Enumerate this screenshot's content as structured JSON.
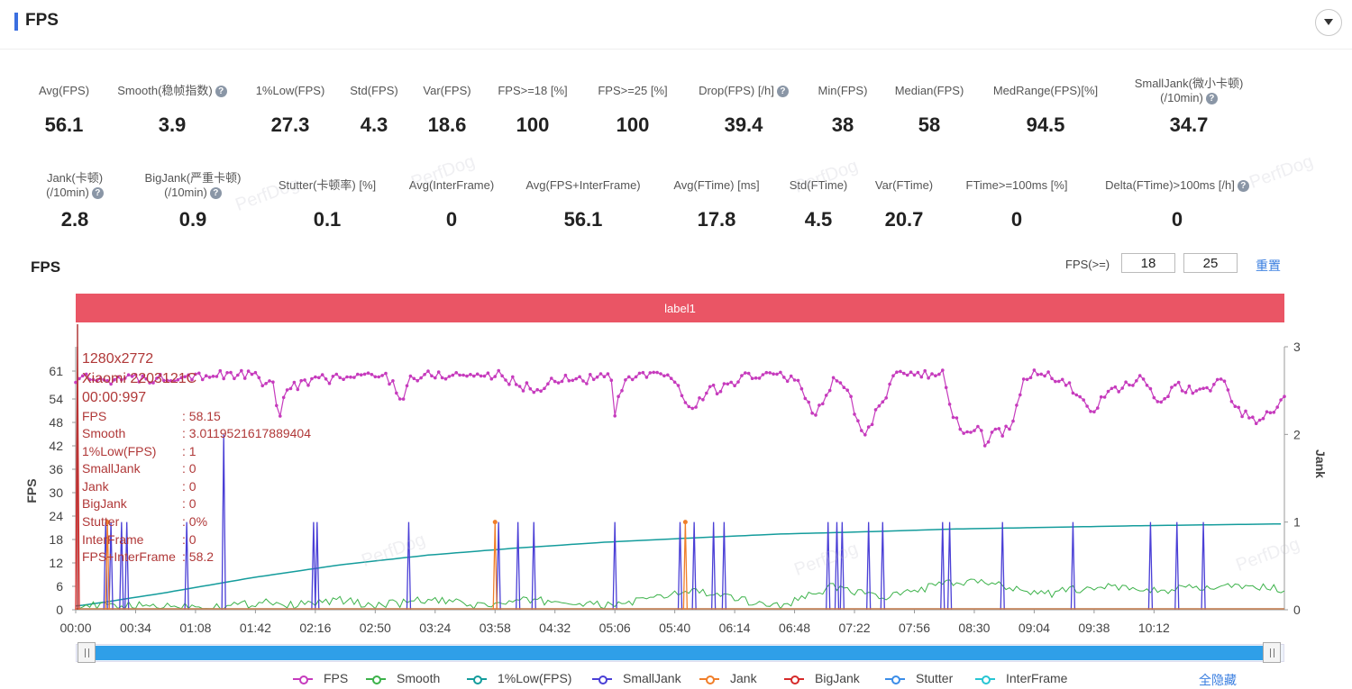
{
  "header": {
    "title": "FPS"
  },
  "stats_row1": [
    {
      "label": "Avg(FPS)",
      "value": "56.1",
      "help": false
    },
    {
      "label": "Smooth(稳帧指数)",
      "value": "3.9",
      "help": true
    },
    {
      "label": "1%Low(FPS)",
      "value": "27.3",
      "help": false
    },
    {
      "label": "Std(FPS)",
      "value": "4.3",
      "help": false
    },
    {
      "label": "Var(FPS)",
      "value": "18.6",
      "help": false
    },
    {
      "label": "FPS>=18 [%]",
      "value": "100",
      "help": false
    },
    {
      "label": "FPS>=25 [%]",
      "value": "100",
      "help": false
    },
    {
      "label": "Drop(FPS) [/h]",
      "value": "39.4",
      "help": true
    },
    {
      "label": "Min(FPS)",
      "value": "38",
      "help": false
    },
    {
      "label": "Median(FPS)",
      "value": "58",
      "help": false
    },
    {
      "label": "MedRange(FPS)[%]",
      "value": "94.5",
      "help": false
    },
    {
      "label": "SmallJank(微小卡顿)",
      "label2": "(/10min)",
      "value": "34.7",
      "help": true
    }
  ],
  "stats_row2": [
    {
      "label": "Jank(卡顿)",
      "label2": "(/10min)",
      "value": "2.8",
      "help": true
    },
    {
      "label": "BigJank(严重卡顿)",
      "label2": "(/10min)",
      "value": "0.9",
      "help": true
    },
    {
      "label": "Stutter(卡顿率) [%]",
      "value": "0.1",
      "help": false
    },
    {
      "label": "Avg(InterFrame)",
      "value": "0",
      "help": false
    },
    {
      "label": "Avg(FPS+InterFrame)",
      "value": "56.1",
      "help": false
    },
    {
      "label": "Avg(FTime) [ms]",
      "value": "17.8",
      "help": false
    },
    {
      "label": "Std(FTime)",
      "value": "4.5",
      "help": false
    },
    {
      "label": "Var(FTime)",
      "value": "20.7",
      "help": false
    },
    {
      "label": "FTime>=100ms [%]",
      "value": "0",
      "help": false
    },
    {
      "label": "Delta(FTime)>100ms [/h]",
      "value": "0",
      "help": true
    }
  ],
  "chart_section": {
    "title": "FPS",
    "threshold_label": "FPS(>=)",
    "threshold1": "18",
    "threshold2": "25",
    "reset_label": "重置",
    "label_bar": "label1",
    "watermark": "PerfDog",
    "hide_all_label": "全隐藏"
  },
  "tooltip": {
    "resolution": "1280x2772",
    "device": "Xiaomi 2203121C",
    "time": "00:00:997",
    "rows": [
      {
        "key": "FPS",
        "value": ": 58.15"
      },
      {
        "key": "Smooth",
        "value": ": 3.0119521617889404"
      },
      {
        "key": "1%Low(FPS)",
        "value": ": 1"
      },
      {
        "key": "SmallJank",
        "value": ": 0"
      },
      {
        "key": "Jank",
        "value": ": 0"
      },
      {
        "key": "BigJank",
        "value": ": 0"
      },
      {
        "key": "Stutter",
        "value": ": 0%"
      },
      {
        "key": "InterFrame",
        "value": ": 0"
      },
      {
        "key": "FPS+InterFrame",
        "value": ": 58.2"
      }
    ]
  },
  "chart_data": {
    "type": "line",
    "ylabel": "FPS",
    "y2label": "Jank",
    "ylim": [
      0,
      66
    ],
    "y2lim": [
      0,
      3
    ],
    "yticks": [
      0,
      6,
      12,
      18,
      24,
      30,
      36,
      42,
      48,
      54,
      61
    ],
    "y2ticks": [
      0,
      1,
      2,
      3
    ],
    "xlim": [
      0,
      686
    ],
    "xticks": [
      "00:00",
      "00:34",
      "01:08",
      "01:42",
      "02:16",
      "02:50",
      "03:24",
      "03:58",
      "04:32",
      "05:06",
      "05:40",
      "06:14",
      "06:48",
      "07:22",
      "07:56",
      "08:30",
      "09:04",
      "09:38",
      "10:12"
    ],
    "xtick_seconds": [
      0,
      34,
      68,
      102,
      136,
      170,
      204,
      238,
      272,
      306,
      340,
      374,
      408,
      442,
      476,
      510,
      544,
      578,
      612
    ],
    "fps_keypoints": [
      [
        0,
        59
      ],
      [
        40,
        59
      ],
      [
        45,
        59
      ],
      [
        60,
        60
      ],
      [
        100,
        60
      ],
      [
        108,
        58
      ],
      [
        112,
        57
      ],
      [
        115,
        49
      ],
      [
        120,
        57
      ],
      [
        140,
        59
      ],
      [
        175,
        60
      ],
      [
        180,
        58
      ],
      [
        185,
        54
      ],
      [
        190,
        59
      ],
      [
        200,
        60
      ],
      [
        240,
        60
      ],
      [
        255,
        57
      ],
      [
        262,
        56
      ],
      [
        272,
        59
      ],
      [
        290,
        59
      ],
      [
        300,
        60
      ],
      [
        305,
        58
      ],
      [
        306,
        50
      ],
      [
        310,
        57
      ],
      [
        318,
        60
      ],
      [
        340,
        59
      ],
      [
        345,
        54
      ],
      [
        350,
        51
      ],
      [
        355,
        54
      ],
      [
        360,
        58
      ],
      [
        365,
        55
      ],
      [
        370,
        58
      ],
      [
        385,
        60
      ],
      [
        400,
        60
      ],
      [
        410,
        58
      ],
      [
        420,
        49
      ],
      [
        423,
        53
      ],
      [
        430,
        59
      ],
      [
        440,
        54
      ],
      [
        447,
        44
      ],
      [
        455,
        51
      ],
      [
        465,
        60
      ],
      [
        480,
        60
      ],
      [
        492,
        60
      ],
      [
        498,
        50
      ],
      [
        505,
        44
      ],
      [
        512,
        48
      ],
      [
        516,
        42
      ],
      [
        520,
        45
      ],
      [
        530,
        46
      ],
      [
        537,
        58
      ],
      [
        542,
        60
      ],
      [
        550,
        60
      ],
      [
        560,
        59
      ],
      [
        570,
        54
      ],
      [
        578,
        51
      ],
      [
        585,
        55
      ],
      [
        595,
        57
      ],
      [
        605,
        59
      ],
      [
        615,
        54
      ],
      [
        625,
        57
      ],
      [
        640,
        56
      ],
      [
        650,
        59
      ],
      [
        660,
        51
      ],
      [
        670,
        48
      ],
      [
        680,
        51
      ],
      [
        686,
        55
      ]
    ],
    "smooth_keypoints": [
      [
        0,
        1
      ],
      [
        80,
        1
      ],
      [
        100,
        1.5
      ],
      [
        110,
        2.5
      ],
      [
        120,
        1
      ],
      [
        150,
        2.5
      ],
      [
        170,
        1
      ],
      [
        200,
        2.5
      ],
      [
        230,
        1
      ],
      [
        260,
        2.5
      ],
      [
        300,
        1
      ],
      [
        330,
        3
      ],
      [
        350,
        5
      ],
      [
        370,
        3
      ],
      [
        400,
        1
      ],
      [
        430,
        6
      ],
      [
        460,
        3
      ],
      [
        490,
        6.5
      ],
      [
        520,
        7
      ],
      [
        550,
        4
      ],
      [
        580,
        6
      ],
      [
        610,
        5
      ],
      [
        640,
        5.5
      ],
      [
        670,
        6
      ],
      [
        686,
        5
      ]
    ],
    "low1pct_keypoints": [
      [
        0,
        1
      ],
      [
        5,
        1.2
      ],
      [
        20,
        2.2
      ],
      [
        50,
        4.3
      ],
      [
        100,
        8.2
      ],
      [
        150,
        11.5
      ],
      [
        200,
        14
      ],
      [
        250,
        15.8
      ],
      [
        300,
        17.3
      ],
      [
        350,
        18.4
      ],
      [
        400,
        19.4
      ],
      [
        450,
        20
      ],
      [
        500,
        20.7
      ],
      [
        550,
        21.1
      ],
      [
        600,
        21.5
      ],
      [
        686,
        22
      ]
    ],
    "smalljank_spikes": [
      [
        17,
        1
      ],
      [
        20,
        1
      ],
      [
        26,
        1
      ],
      [
        29,
        1
      ],
      [
        63,
        1
      ],
      [
        84,
        2
      ],
      [
        135,
        1
      ],
      [
        137,
        1
      ],
      [
        189,
        1
      ],
      [
        240,
        1
      ],
      [
        251,
        1
      ],
      [
        260,
        1
      ],
      [
        306,
        1
      ],
      [
        343,
        1
      ],
      [
        351,
        1
      ],
      [
        362,
        1
      ],
      [
        368,
        1
      ],
      [
        427,
        1
      ],
      [
        432,
        1
      ],
      [
        435,
        1
      ],
      [
        450,
        1
      ],
      [
        458,
        1
      ],
      [
        492,
        1
      ],
      [
        496,
        1
      ],
      [
        526,
        1
      ],
      [
        566,
        1
      ],
      [
        610,
        1
      ],
      [
        625,
        1
      ],
      [
        640,
        1
      ]
    ],
    "jank_spikes": [
      [
        18,
        1
      ],
      [
        238,
        1
      ],
      [
        346,
        1
      ]
    ],
    "bigjank_spikes": [
      [
        1,
        3
      ]
    ],
    "series": [
      {
        "name": "FPS",
        "color": "#c63bbd",
        "marker": true
      },
      {
        "name": "Smooth",
        "color": "#3cb24a"
      },
      {
        "name": "1%Low(FPS)",
        "color": "#149c9c"
      },
      {
        "name": "SmallJank",
        "color": "#4a3fd6"
      },
      {
        "name": "Jank",
        "color": "#f07e2a"
      },
      {
        "name": "BigJank",
        "color": "#d62a2a"
      },
      {
        "name": "Stutter",
        "color": "#3b8de8"
      },
      {
        "name": "InterFrame",
        "color": "#27c5d3"
      }
    ]
  }
}
